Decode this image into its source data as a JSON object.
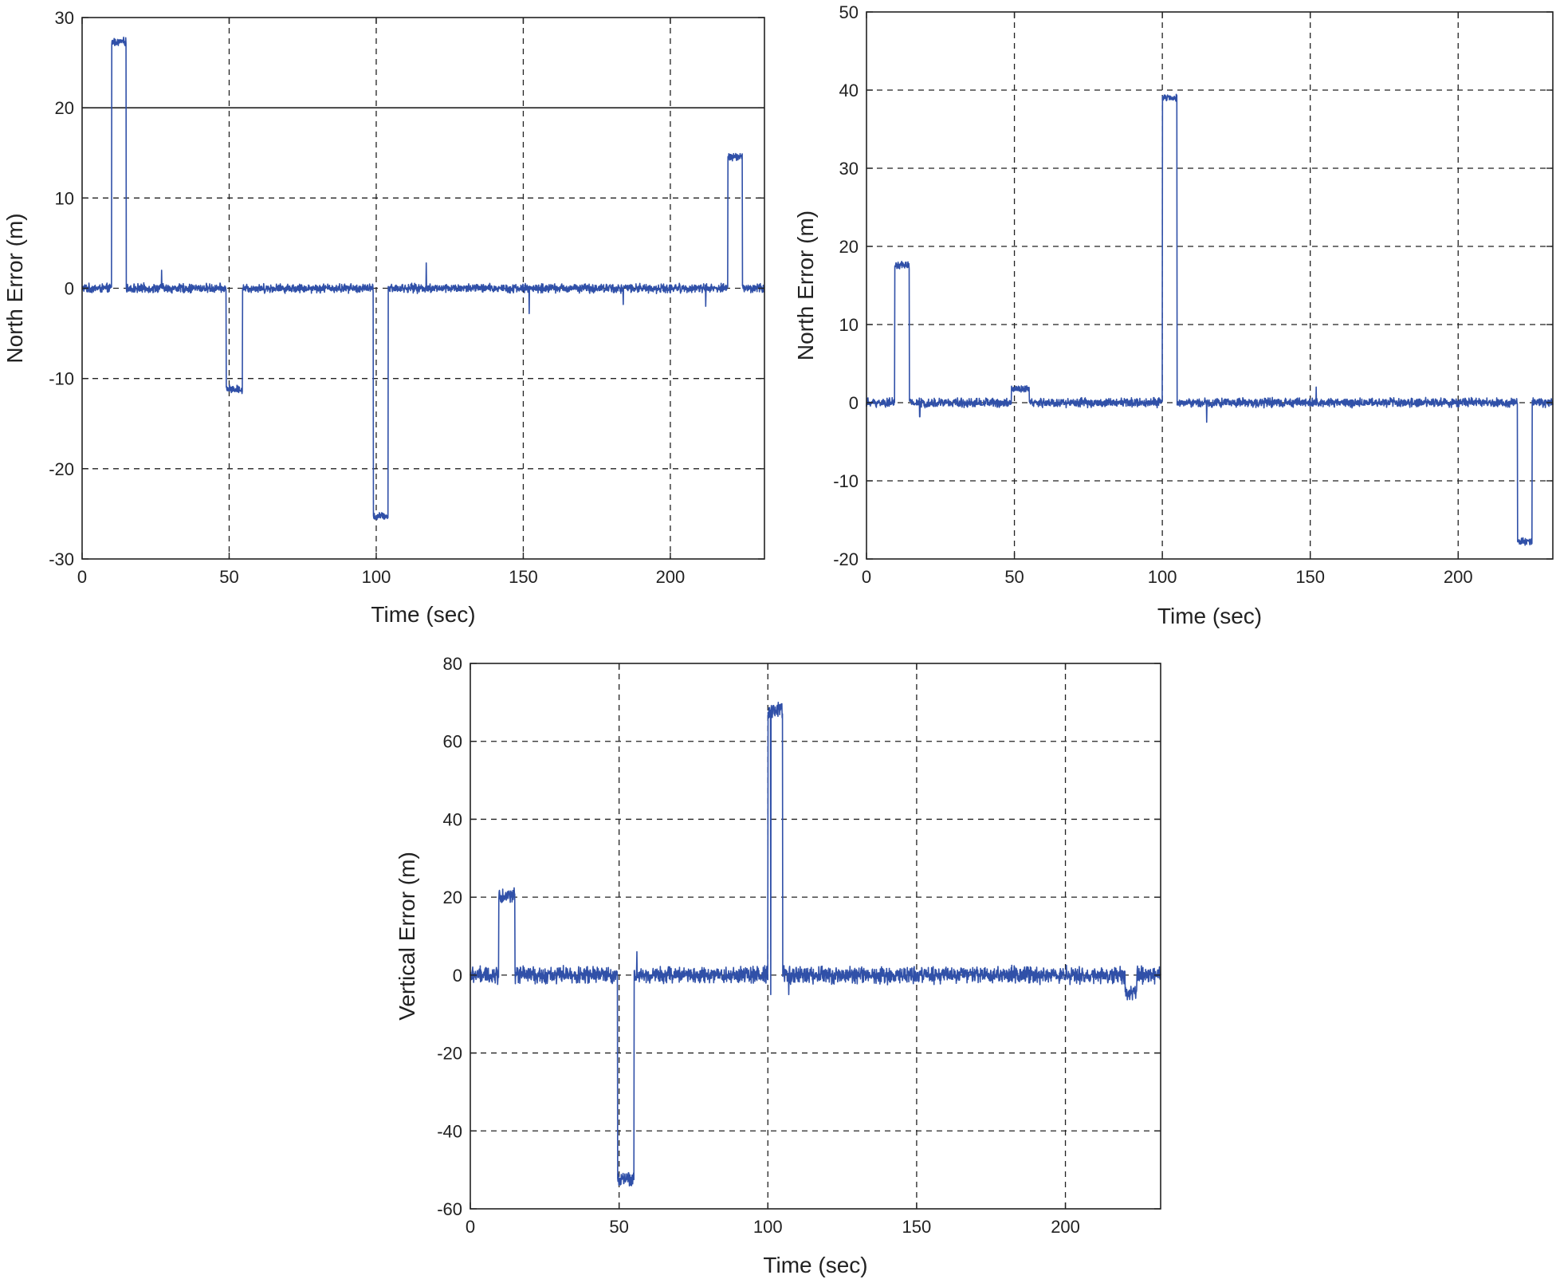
{
  "chart_data": [
    {
      "type": "line",
      "xlabel": "Time (sec)",
      "ylabel": "North Error (m)",
      "xlim": [
        0,
        232
      ],
      "ylim": [
        -30,
        30
      ],
      "xticks": [
        0,
        50,
        100,
        150,
        200
      ],
      "yticks": [
        -30,
        -20,
        -10,
        0,
        10,
        20,
        30
      ],
      "grid": true,
      "reference_line": 20,
      "series_color": "#3050a8",
      "baseline": 0,
      "noise_amplitude": 0.6,
      "segments": [
        {
          "start": 10,
          "end": 15,
          "value": 27.3
        },
        {
          "start": 49,
          "end": 54.5,
          "value": -11.2
        },
        {
          "start": 99,
          "end": 104,
          "value": -25.3
        },
        {
          "start": 219.5,
          "end": 224.5,
          "value": 14.6
        }
      ],
      "spikes": [
        {
          "x": 27,
          "value": 2
        },
        {
          "x": 117,
          "value": 2.8
        },
        {
          "x": 152,
          "value": -2.8
        },
        {
          "x": 184,
          "value": -1.8
        },
        {
          "x": 212,
          "value": -2
        }
      ]
    },
    {
      "type": "line",
      "xlabel": "Time (sec)",
      "ylabel": "North Error (m)",
      "xlim": [
        0,
        232
      ],
      "ylim": [
        -20,
        50
      ],
      "xticks": [
        0,
        50,
        100,
        150,
        200
      ],
      "yticks": [
        -20,
        -10,
        0,
        10,
        20,
        30,
        40,
        50
      ],
      "grid": true,
      "series_color": "#3050a8",
      "baseline": 0,
      "noise_amplitude": 0.7,
      "segments": [
        {
          "start": 9.5,
          "end": 14.5,
          "value": 17.6
        },
        {
          "start": 49,
          "end": 55,
          "value": 1.7
        },
        {
          "start": 100,
          "end": 105,
          "value": 39
        }
      ],
      "negative_segments": [
        {
          "start": 220,
          "end": 225,
          "value": -17.8
        }
      ],
      "spikes": [
        {
          "x": 115,
          "value": -2.5
        },
        {
          "x": 152,
          "value": 2
        },
        {
          "x": 18,
          "value": -1.8
        }
      ]
    },
    {
      "type": "line",
      "xlabel": "Time (sec)",
      "ylabel": "Vertical Error (m)",
      "xlim": [
        0,
        232
      ],
      "ylim": [
        -60,
        80
      ],
      "xticks": [
        0,
        50,
        100,
        150,
        200
      ],
      "yticks": [
        -60,
        -40,
        -20,
        0,
        20,
        40,
        60,
        80
      ],
      "grid": true,
      "series_color": "#3050a8",
      "baseline": 0,
      "noise_amplitude": 2.6,
      "segments": [
        {
          "start": 9.5,
          "end": 15,
          "value": 20.5
        },
        {
          "start": 49.5,
          "end": 55,
          "value": -52.5
        },
        {
          "start": 100,
          "end": 105,
          "value": 68
        },
        {
          "start": 220,
          "end": 224,
          "value": -4.5
        }
      ],
      "spikes": [
        {
          "x": 56,
          "value": 6
        },
        {
          "x": 101,
          "value": -5
        },
        {
          "x": 107,
          "value": -5
        }
      ]
    }
  ]
}
